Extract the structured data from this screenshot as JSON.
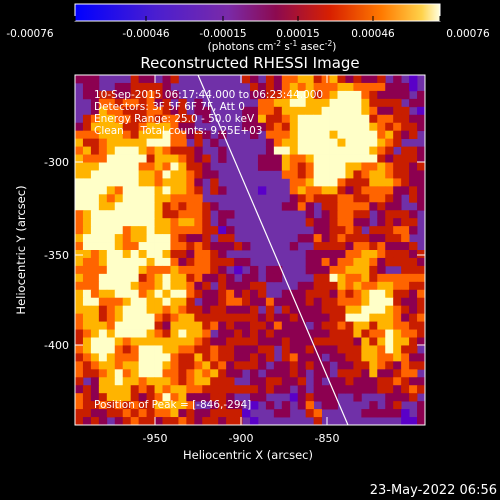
{
  "colorbar": {
    "ticks": [
      "-0.00076",
      "-0.00046",
      "-0.00015",
      "0.00015",
      "0.00046",
      "0.00076"
    ],
    "units_prefix": "(photons cm",
    "units_sup1": "-2",
    "units_mid1": " s",
    "units_sup2": "-1",
    "units_mid2": " asec",
    "units_sup3": "-2",
    "units_suffix": ")"
  },
  "image": {
    "title": "Reconstructed RHESSI Image",
    "info_lines": [
      "10-Sep-2015 06:17:44.000 to 06:23:44.000",
      "Detectors: 3F 5F 6F 7F, Att 0",
      "Energy Range: 25.0 - 50.0 keV",
      "Clean     Total counts: 9.25E+03"
    ],
    "peak_text": "Position of Peak = [-846,-294]",
    "x_axis_label": "Heliocentric X (arcsec)",
    "y_axis_label": "Heliocentric Y (arcsec)",
    "x_tick_labels": [
      "-950",
      "-900",
      "-850"
    ],
    "y_tick_labels": [
      "-300",
      "-350",
      "-400"
    ],
    "timestamp": "23-May-2022 06:56"
  },
  "colors": {
    "background": "#000000",
    "text": "#ffffff",
    "colormap": [
      "#0000ff",
      "#5a00c8",
      "#7d2aa5",
      "#8c0050",
      "#c81e00",
      "#ff6400",
      "#ffb400",
      "#ffffc8"
    ]
  }
}
